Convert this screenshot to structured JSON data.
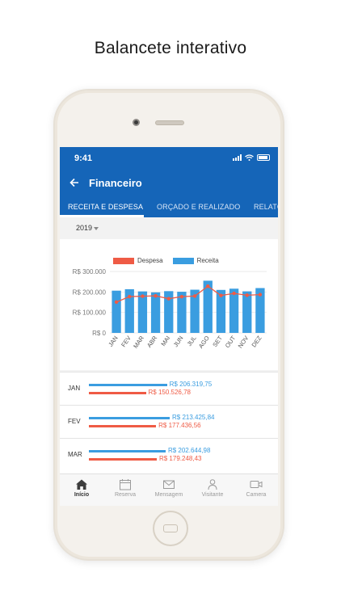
{
  "headline": "Balancete interativo",
  "status": {
    "time": "9:41"
  },
  "appbar": {
    "back_icon": "back-arrow-icon",
    "title": "Financeiro"
  },
  "tabs": [
    {
      "label": "RECEITA E DESPESA",
      "active": true
    },
    {
      "label": "ORÇADO E REALIZADO",
      "active": false
    },
    {
      "label": "RELATÓ",
      "active": false
    }
  ],
  "year_selector": {
    "value": "2019"
  },
  "colors": {
    "primary": "#1565b8",
    "receita": "#3a9de0",
    "despesa": "#ef5b45"
  },
  "chart_data": {
    "type": "bar",
    "categories": [
      "JAN",
      "FEV",
      "MAR",
      "ABR",
      "MAI",
      "JUN",
      "JUL",
      "AGO",
      "SET",
      "OUT",
      "NOV",
      "DEZ"
    ],
    "series": [
      {
        "name": "Receita",
        "type": "bar",
        "values": [
          206319.75,
          213425.84,
          202644.98,
          198000,
          204000,
          201000,
          211000,
          255000,
          210000,
          216000,
          203000,
          219000
        ]
      },
      {
        "name": "Despesa",
        "type": "line",
        "values": [
          150526.78,
          177436.56,
          179248.43,
          181000,
          167000,
          177000,
          180000,
          228000,
          183000,
          193000,
          184000,
          187000
        ]
      }
    ],
    "ytick_labels": [
      "R$ 300.000",
      "R$ 200.000",
      "R$ 100.000",
      "R$ 0"
    ],
    "ylim": [
      0,
      300000
    ],
    "legend": [
      "Despesa",
      "Receita"
    ],
    "grid": true
  },
  "summary": [
    {
      "month": "JAN",
      "receita": "R$ 206.319,75",
      "despesa": "R$ 150.526,78",
      "receita_value": 206319.75,
      "despesa_value": 150526.78
    },
    {
      "month": "FEV",
      "receita": "R$ 213.425,84",
      "despesa": "R$ 177.436,56",
      "receita_value": 213425.84,
      "despesa_value": 177436.56
    },
    {
      "month": "MAR",
      "receita": "R$ 202.644,98",
      "despesa": "R$ 179.248,43",
      "receita_value": 202644.98,
      "despesa_value": 179248.43
    }
  ],
  "bottom_nav": [
    {
      "label": "Início",
      "icon": "home-icon",
      "active": true
    },
    {
      "label": "Reserva",
      "icon": "calendar-icon",
      "active": false
    },
    {
      "label": "Mensagem",
      "icon": "mail-icon",
      "active": false
    },
    {
      "label": "Visitante",
      "icon": "visitor-icon",
      "active": false
    },
    {
      "label": "Camera",
      "icon": "camera-icon",
      "active": false
    }
  ]
}
